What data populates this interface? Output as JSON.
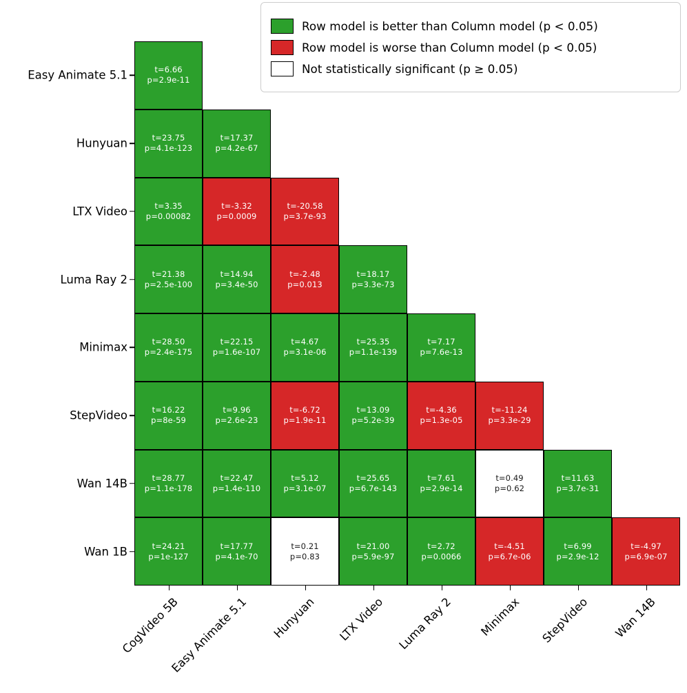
{
  "colors": {
    "better": "#2ca02c",
    "worse": "#d62728",
    "not_significant": "#ffffff",
    "cell_border": "#000000",
    "legend_border": "#cccccc"
  },
  "legend": {
    "entries": [
      {
        "status": "better",
        "color": "#2ca02c",
        "label": "Row model is better than Column model (p < 0.05)"
      },
      {
        "status": "worse",
        "color": "#d62728",
        "label": "Row model is worse than Column model (p < 0.05)"
      },
      {
        "status": "ns",
        "color": "#ffffff",
        "label": "Not statistically significant (p ≥ 0.05)"
      }
    ],
    "position": "upper right"
  },
  "chart_data": {
    "type": "heatmap",
    "title": "",
    "xlabel": "",
    "ylabel": "",
    "grid": false,
    "shape": "lower-triangular",
    "row_labels": [
      "Easy Animate 5.1",
      "Hunyuan",
      "LTX Video",
      "Luma Ray 2",
      "Minimax",
      "StepVideo",
      "Wan 14B",
      "Wan 1B"
    ],
    "col_labels": [
      "CogVideo 5B",
      "Easy Animate 5.1",
      "Hunyuan",
      "LTX Video",
      "Luma Ray 2",
      "Minimax",
      "StepVideo",
      "Wan 14B"
    ],
    "cells": [
      [
        {
          "t_label": "t=6.66",
          "p_label": "p=2.9e-11",
          "status": "better"
        }
      ],
      [
        {
          "t_label": "t=23.75",
          "p_label": "p=4.1e-123",
          "status": "better"
        },
        {
          "t_label": "t=17.37",
          "p_label": "p=4.2e-67",
          "status": "better"
        }
      ],
      [
        {
          "t_label": "t=3.35",
          "p_label": "p=0.00082",
          "status": "better"
        },
        {
          "t_label": "t=-3.32",
          "p_label": "p=0.0009",
          "status": "worse"
        },
        {
          "t_label": "t=-20.58",
          "p_label": "p=3.7e-93",
          "status": "worse"
        }
      ],
      [
        {
          "t_label": "t=21.38",
          "p_label": "p=2.5e-100",
          "status": "better"
        },
        {
          "t_label": "t=14.94",
          "p_label": "p=3.4e-50",
          "status": "better"
        },
        {
          "t_label": "t=-2.48",
          "p_label": "p=0.013",
          "status": "worse"
        },
        {
          "t_label": "t=18.17",
          "p_label": "p=3.3e-73",
          "status": "better"
        }
      ],
      [
        {
          "t_label": "t=28.50",
          "p_label": "p=2.4e-175",
          "status": "better"
        },
        {
          "t_label": "t=22.15",
          "p_label": "p=1.6e-107",
          "status": "better"
        },
        {
          "t_label": "t=4.67",
          "p_label": "p=3.1e-06",
          "status": "better"
        },
        {
          "t_label": "t=25.35",
          "p_label": "p=1.1e-139",
          "status": "better"
        },
        {
          "t_label": "t=7.17",
          "p_label": "p=7.6e-13",
          "status": "better"
        }
      ],
      [
        {
          "t_label": "t=16.22",
          "p_label": "p=8e-59",
          "status": "better"
        },
        {
          "t_label": "t=9.96",
          "p_label": "p=2.6e-23",
          "status": "better"
        },
        {
          "t_label": "t=-6.72",
          "p_label": "p=1.9e-11",
          "status": "worse"
        },
        {
          "t_label": "t=13.09",
          "p_label": "p=5.2e-39",
          "status": "better"
        },
        {
          "t_label": "t=-4.36",
          "p_label": "p=1.3e-05",
          "status": "worse"
        },
        {
          "t_label": "t=-11.24",
          "p_label": "p=3.3e-29",
          "status": "worse"
        }
      ],
      [
        {
          "t_label": "t=28.77",
          "p_label": "p=1.1e-178",
          "status": "better"
        },
        {
          "t_label": "t=22.47",
          "p_label": "p=1.4e-110",
          "status": "better"
        },
        {
          "t_label": "t=5.12",
          "p_label": "p=3.1e-07",
          "status": "better"
        },
        {
          "t_label": "t=25.65",
          "p_label": "p=6.7e-143",
          "status": "better"
        },
        {
          "t_label": "t=7.61",
          "p_label": "p=2.9e-14",
          "status": "better"
        },
        {
          "t_label": "t=0.49",
          "p_label": "p=0.62",
          "status": "ns"
        },
        {
          "t_label": "t=11.63",
          "p_label": "p=3.7e-31",
          "status": "better"
        }
      ],
      [
        {
          "t_label": "t=24.21",
          "p_label": "p=1e-127",
          "status": "better"
        },
        {
          "t_label": "t=17.77",
          "p_label": "p=4.1e-70",
          "status": "better"
        },
        {
          "t_label": "t=0.21",
          "p_label": "p=0.83",
          "status": "ns"
        },
        {
          "t_label": "t=21.00",
          "p_label": "p=5.9e-97",
          "status": "better"
        },
        {
          "t_label": "t=2.72",
          "p_label": "p=0.0066",
          "status": "better"
        },
        {
          "t_label": "t=-4.51",
          "p_label": "p=6.7e-06",
          "status": "worse"
        },
        {
          "t_label": "t=6.99",
          "p_label": "p=2.9e-12",
          "status": "better"
        },
        {
          "t_label": "t=-4.97",
          "p_label": "p=6.9e-07",
          "status": "worse"
        }
      ]
    ]
  }
}
